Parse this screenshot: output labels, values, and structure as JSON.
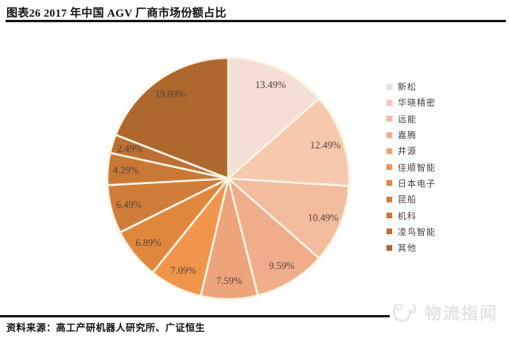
{
  "header": {
    "title": "图表26 2017 年中国 AGV 厂商市场份额占比"
  },
  "footer": {
    "source": "资料来源：高工产研机器人研究所、广证恒生"
  },
  "watermark": {
    "text": "物流指闻"
  },
  "chart_data": {
    "type": "pie",
    "title": "2017 年中国 AGV 厂商市场份额占比",
    "categories": [
      "新松",
      "华晓精密",
      "远能",
      "嘉腾",
      "井源",
      "佳顺智能",
      "日本电子",
      "昆船",
      "机科",
      "凌鸟智能",
      "其他"
    ],
    "values": [
      13.49,
      12.49,
      10.49,
      9.59,
      7.59,
      7.09,
      6.89,
      6.49,
      4.29,
      2.49,
      19.09
    ],
    "labels": [
      "13.49%",
      "12.49%",
      "10.49%",
      "9.59%",
      "7.59%",
      "7.09%",
      "6.89%",
      "6.49%",
      "4.29%",
      "2.49%",
      "19.09%"
    ],
    "colors": [
      "#f5ded3",
      "#f6c9af",
      "#f3bc9f",
      "#f0ad8c",
      "#eda47b",
      "#f0954b",
      "#e1873c",
      "#d07d3a",
      "#ca7836",
      "#bc7033",
      "#ae682d"
    ],
    "start_angle_deg": 0,
    "direction": "clockwise",
    "legend_position": "right",
    "slice_border_color": "#fbf2e1",
    "label_color": "#54413a"
  }
}
